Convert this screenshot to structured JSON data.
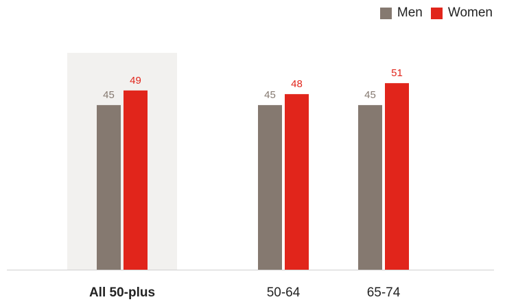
{
  "chart_data": {
    "type": "bar",
    "title": "",
    "xlabel": "",
    "ylabel": "",
    "categories": [
      "All 50-plus",
      "50-64",
      "65-74"
    ],
    "highlighted_category": "All 50-plus",
    "series": [
      {
        "name": "Men",
        "values": [
          45,
          45,
          45
        ],
        "color": "#857970"
      },
      {
        "name": "Women",
        "values": [
          49,
          48,
          51
        ],
        "color": "#e1251b"
      }
    ],
    "ylim": [
      0,
      60
    ],
    "grid": false,
    "legend": "top-right",
    "highlight_color": "#f2f1ef",
    "baseline_color": "#cfcfcf"
  }
}
